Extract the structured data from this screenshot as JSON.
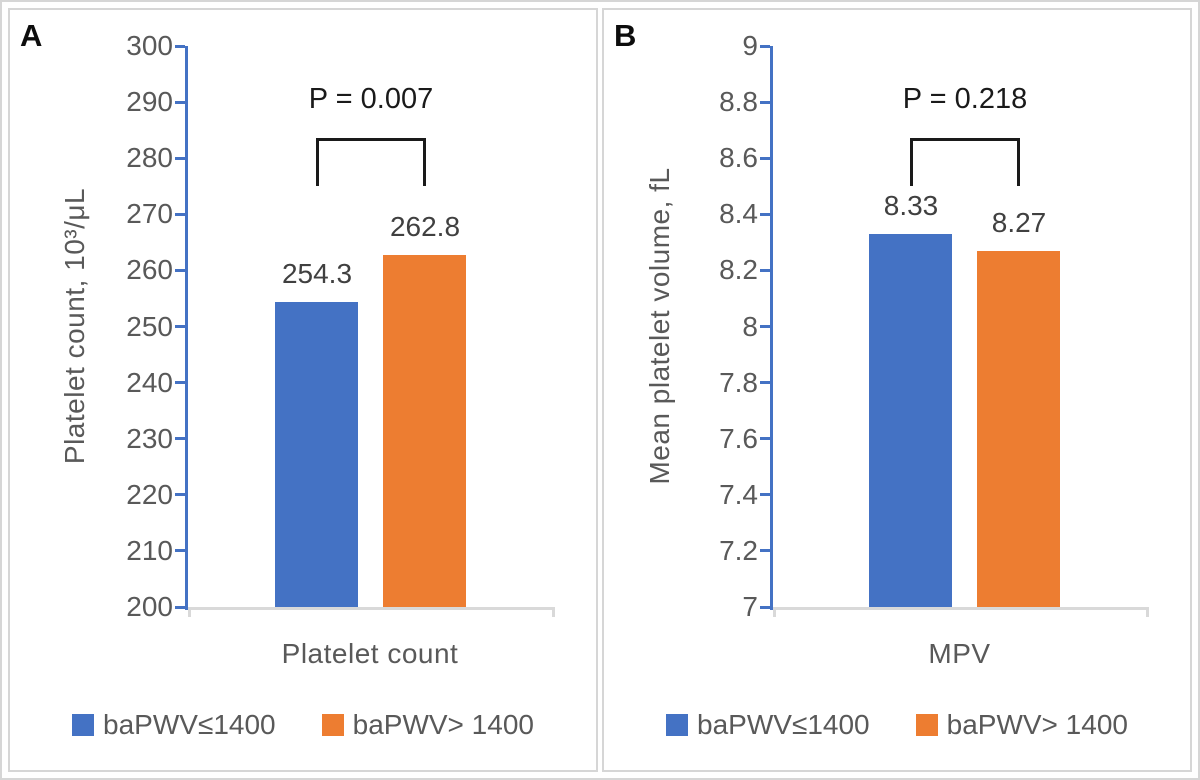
{
  "colors": {
    "group1": "#4472C4",
    "group2": "#ED7D31",
    "y_axis_line": "#4472C4",
    "x_axis_line": "#D9D9D9",
    "tick_text": "#595959",
    "data_label_text": "#404040"
  },
  "chart_data": [
    {
      "panel": "A",
      "type": "bar",
      "categories": [
        "Platelet count"
      ],
      "series": [
        {
          "name": "baPWV≤1400",
          "color": "#4472C4",
          "values": [
            254.3
          ],
          "label": "254.3"
        },
        {
          "name": "baPWV> 1400",
          "color": "#ED7D31",
          "values": [
            262.8
          ],
          "label": "262.8"
        }
      ],
      "title": "",
      "xlabel": "Platelet count",
      "ylabel": "Platelet count, 10³/μL",
      "ylim": [
        200,
        300
      ],
      "y_tick_step": 10,
      "y_ticks": [
        "300",
        "290",
        "280",
        "270",
        "260",
        "250",
        "240",
        "230",
        "220",
        "210",
        "200"
      ],
      "annotation": "P = 0.007",
      "grid": false,
      "legend_position": "bottom"
    },
    {
      "panel": "B",
      "type": "bar",
      "categories": [
        "MPV"
      ],
      "series": [
        {
          "name": "baPWV≤1400",
          "color": "#4472C4",
          "values": [
            8.33
          ],
          "label": "8.33"
        },
        {
          "name": "baPWV> 1400",
          "color": "#ED7D31",
          "values": [
            8.27
          ],
          "label": "8.27"
        }
      ],
      "title": "",
      "xlabel": "MPV",
      "ylabel": "Mean platelet volume, fL",
      "ylim": [
        7,
        9
      ],
      "y_tick_step": 0.2,
      "y_ticks": [
        "9",
        "8.8",
        "8.6",
        "8.4",
        "8.2",
        "8",
        "7.8",
        "7.6",
        "7.4",
        "7.2",
        "7"
      ],
      "annotation": "P = 0.218",
      "grid": false,
      "legend_position": "bottom"
    }
  ]
}
